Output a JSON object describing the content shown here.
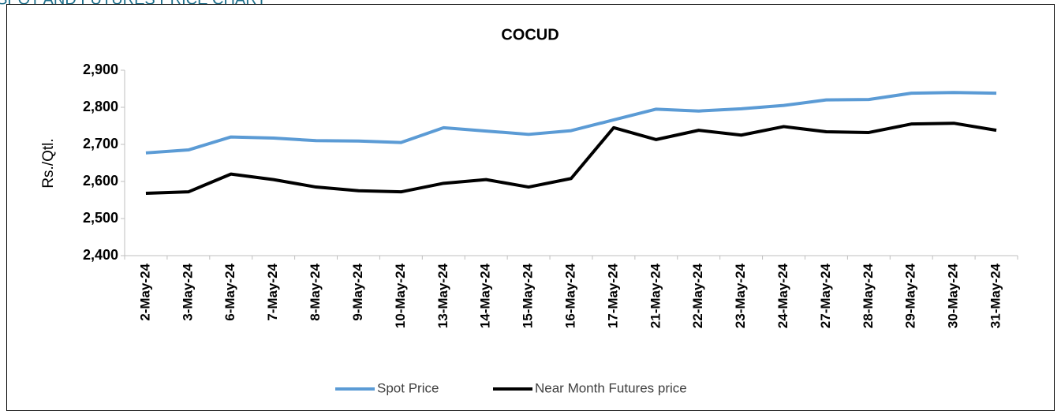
{
  "heading": "SPOT AND FUTURES PRICE CHART",
  "chart_data": {
    "type": "line",
    "title": "COCUD",
    "y_label": "Rs./Qtl.",
    "categories": [
      "2-May-24",
      "3-May-24",
      "6-May-24",
      "7-May-24",
      "8-May-24",
      "9-May-24",
      "10-May-24",
      "13-May-24",
      "14-May-24",
      "15-May-24",
      "16-May-24",
      "17-May-24",
      "21-May-24",
      "22-May-24",
      "23-May-24",
      "24-May-24",
      "27-May-24",
      "28-May-24",
      "29-May-24",
      "30-May-24",
      "31-May-24"
    ],
    "series": [
      {
        "name": "Spot Price",
        "color": "#5b9bd5",
        "values": [
          2677,
          2685,
          2720,
          2717,
          2710,
          2709,
          2705,
          2745,
          2736,
          2727,
          2737,
          2766,
          2795,
          2790,
          2796,
          2805,
          2820,
          2821,
          2838,
          2840,
          2838
        ]
      },
      {
        "name": "Near Month Futures price",
        "color": "#000000",
        "values": [
          2568,
          2572,
          2620,
          2605,
          2585,
          2575,
          2572,
          2595,
          2605,
          2585,
          2608,
          2745,
          2713,
          2738,
          2725,
          2748,
          2734,
          2732,
          2755,
          2757,
          2738
        ]
      }
    ],
    "ylim": [
      2400,
      2900
    ],
    "yticks": [
      {
        "value": 2400,
        "label": "2,400"
      },
      {
        "value": 2500,
        "label": "2,500"
      },
      {
        "value": 2600,
        "label": "2,600"
      },
      {
        "value": 2700,
        "label": "2,700"
      },
      {
        "value": 2800,
        "label": "2,800"
      },
      {
        "value": 2900,
        "label": "2,900"
      }
    ],
    "grid": false,
    "legend": "bottom"
  }
}
